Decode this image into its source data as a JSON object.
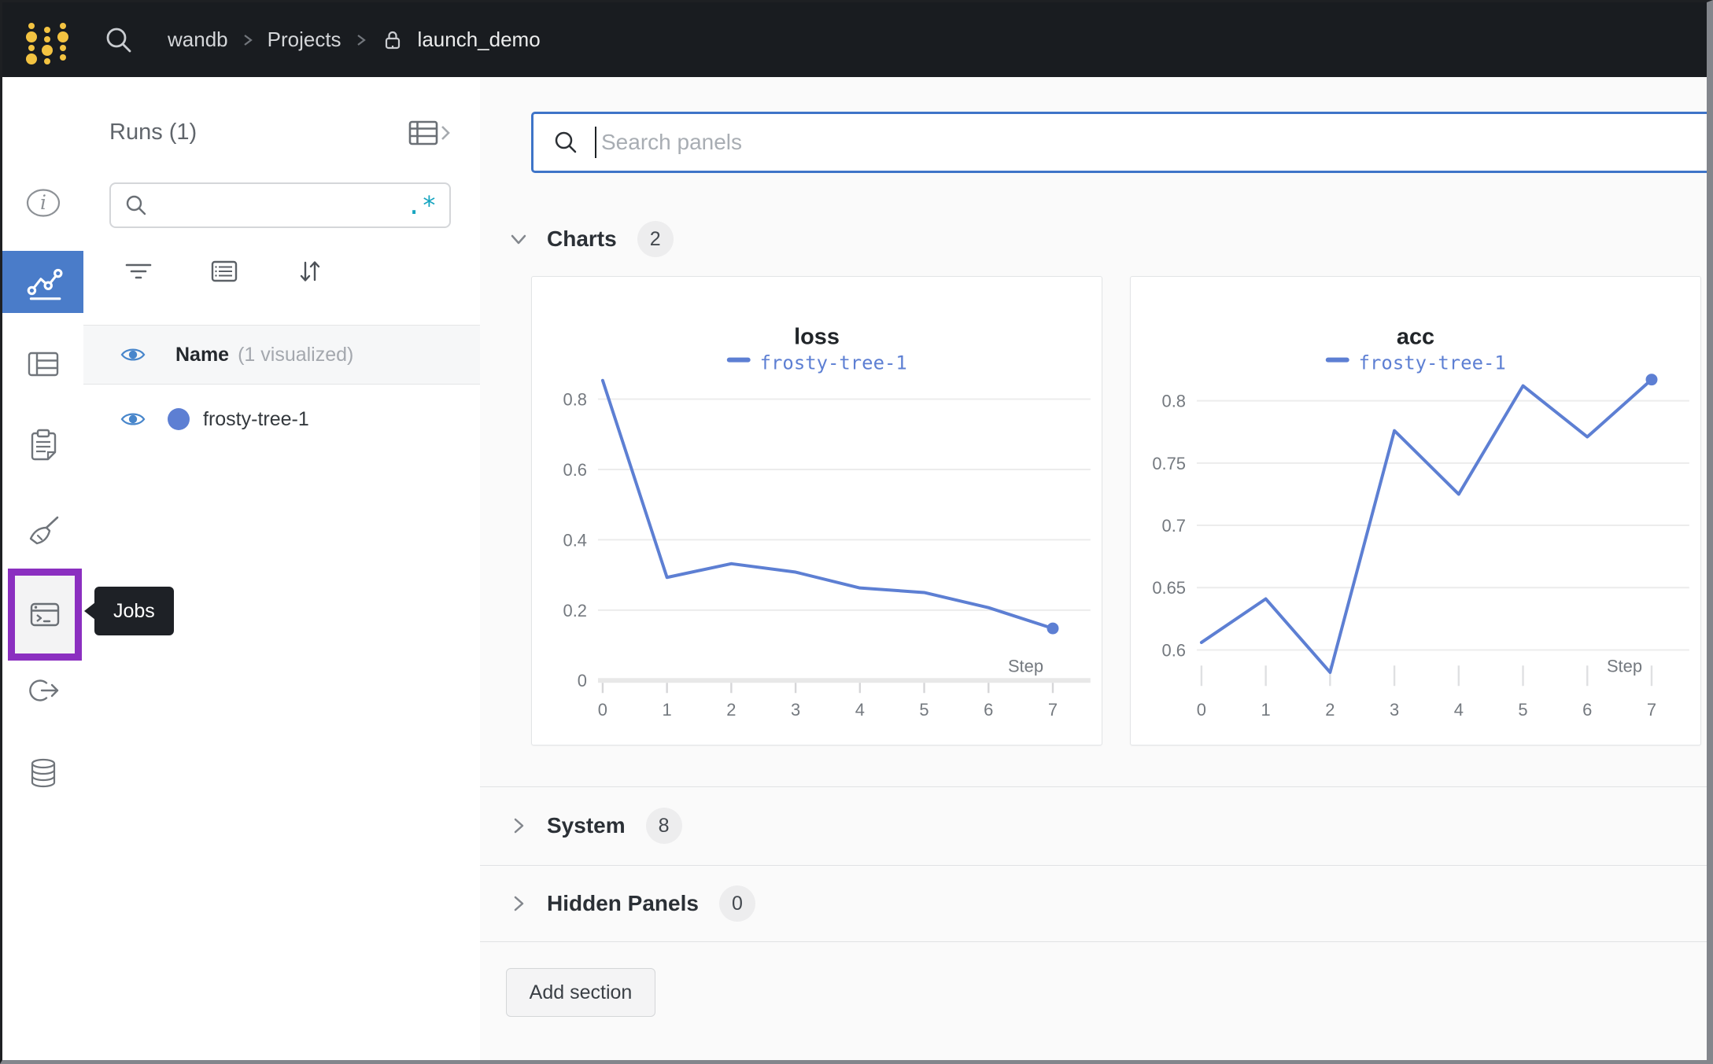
{
  "colors": {
    "header_bg": "#191c20",
    "logo_gold": "#f3c341",
    "selected_nav_blue": "#4a7cc9",
    "jobs_highlight_purple": "#8b2fc0",
    "run_line_blue": "#5d7fd3",
    "eye_blue": "#4886cb",
    "regex_teal": "#17a5c0",
    "focus_border_blue": "#3e74c8"
  },
  "header": {
    "breadcrumb": {
      "items": [
        "wandb",
        "Projects"
      ],
      "current": "launch_demo"
    }
  },
  "sidebar": {
    "jobs_tooltip": "Jobs",
    "items": [
      {
        "icon": "info-icon"
      },
      {
        "icon": "workspace-chart-icon",
        "selected": true
      },
      {
        "icon": "runs-table-icon"
      },
      {
        "icon": "logs-clipboard-icon"
      },
      {
        "icon": "sweeps-broom-icon"
      },
      {
        "icon": "jobs-terminal-icon",
        "highlighted": true
      },
      {
        "icon": "launch-arrow-icon"
      },
      {
        "icon": "artifacts-database-icon"
      }
    ]
  },
  "runs_panel": {
    "title": "Runs (1)",
    "search_value": "",
    "search_placeholder": "",
    "regex_glyph": ".*",
    "columns": {
      "name": "Name",
      "visualized": "(1 visualized)"
    },
    "runs": [
      {
        "name": "frosty-tree-1",
        "color": "#5d7fd3",
        "visible": true
      }
    ]
  },
  "main": {
    "search": {
      "placeholder": "Search panels",
      "value": ""
    },
    "sections": [
      {
        "label": "Charts",
        "count": "2",
        "expanded": true
      },
      {
        "label": "System",
        "count": "8",
        "expanded": false
      },
      {
        "label": "Hidden Panels",
        "count": "0",
        "expanded": false
      }
    ],
    "add_section_label": "Add section"
  },
  "chart_data": [
    {
      "type": "line",
      "title": "loss",
      "xlabel": "Step",
      "xlim": [
        0,
        7
      ],
      "ylim": [
        0,
        0.858
      ],
      "x_ticks": {
        "values": [
          0,
          1,
          2,
          3,
          4,
          5,
          6,
          7
        ],
        "labels": [
          "0",
          "1",
          "2",
          "3",
          "4",
          "5",
          "6",
          "7"
        ]
      },
      "y_ticks": {
        "values": [
          0,
          0.2,
          0.4,
          0.6,
          0.8
        ],
        "labels": [
          "0",
          "0.2",
          "0.4",
          "0.6",
          "0.8"
        ]
      },
      "baseline": true,
      "grid": true,
      "legend_position": "top",
      "series": [
        {
          "name": "frosty-tree-1",
          "color": "#5d7fd3",
          "x": [
            0,
            1,
            2,
            3,
            4,
            5,
            6,
            7
          ],
          "y": [
            0.853,
            0.293,
            0.332,
            0.308,
            0.263,
            0.25,
            0.207,
            0.148
          ]
        }
      ]
    },
    {
      "type": "line",
      "title": "acc",
      "xlabel": "Step",
      "xlim": [
        0,
        7
      ],
      "ylim": [
        0.5755,
        0.8177
      ],
      "x_ticks": {
        "values": [
          0,
          1,
          2,
          3,
          4,
          5,
          6,
          7
        ],
        "labels": [
          "0",
          "1",
          "2",
          "3",
          "4",
          "5",
          "6",
          "7"
        ]
      },
      "y_ticks": {
        "values": [
          0.6,
          0.65,
          0.7,
          0.75,
          0.8
        ],
        "labels": [
          "0.6",
          "0.65",
          "0.7",
          "0.75",
          "0.8"
        ]
      },
      "baseline": false,
      "grid": true,
      "legend_position": "top",
      "series": [
        {
          "name": "frosty-tree-1",
          "color": "#5d7fd3",
          "x": [
            0,
            1,
            2,
            3,
            4,
            5,
            6,
            7
          ],
          "y": [
            0.606,
            0.641,
            0.582,
            0.776,
            0.725,
            0.812,
            0.771,
            0.817
          ]
        }
      ]
    }
  ]
}
